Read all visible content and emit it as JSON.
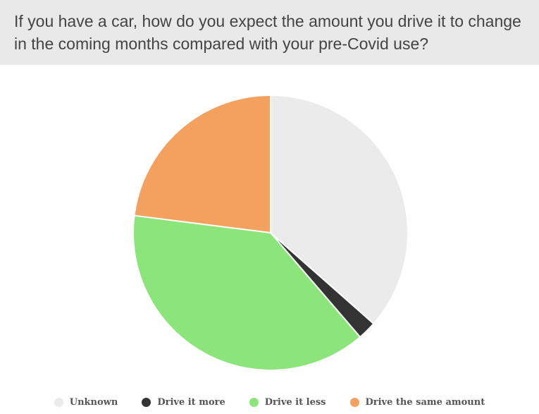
{
  "title": "If you have a car, how do you expect the amount you drive it to change in the coming months compared with your pre-Covid use?",
  "chart_data": {
    "type": "pie",
    "title": "If you have a car, how do you expect the amount you drive it to change in the coming months compared with your pre-Covid use?",
    "categories": [
      "Unknown",
      "Drive it more",
      "Drive it less",
      "Drive the same amount"
    ],
    "values": [
      36.5,
      2.2,
      38.3,
      23.0
    ],
    "unit": "%",
    "colors": [
      "#ebebeb",
      "#333333",
      "#8ce57a",
      "#f4a05e"
    ],
    "start_angle_deg": 0,
    "direction": "clockwise",
    "legend_position": "bottom"
  }
}
